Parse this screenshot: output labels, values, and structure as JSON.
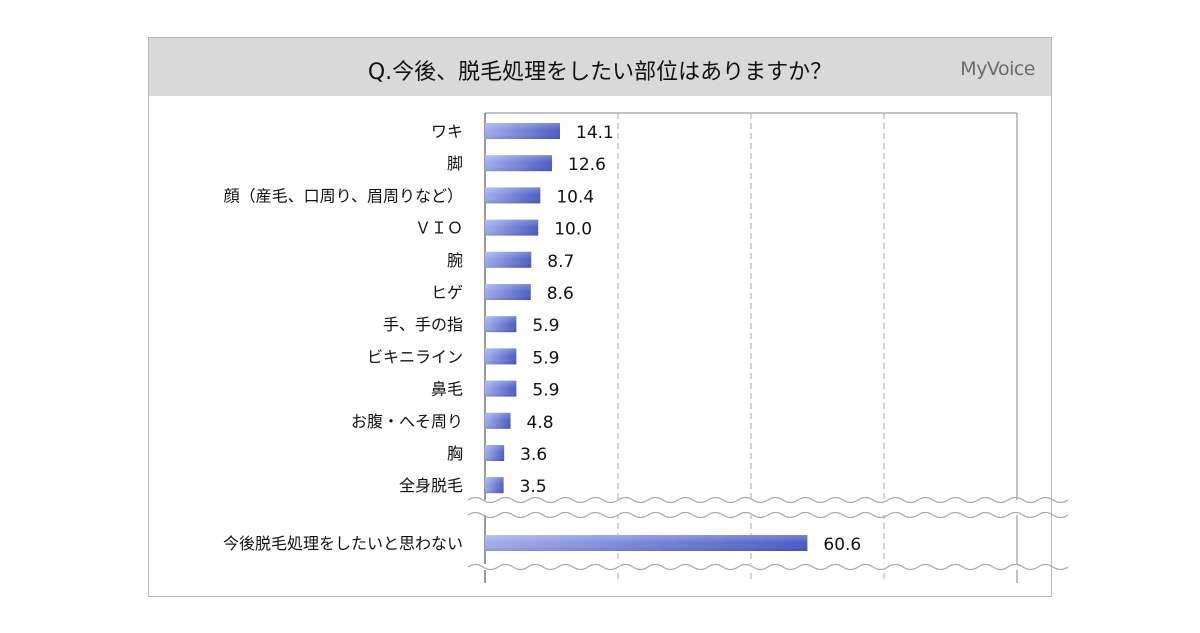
{
  "header": {
    "title": "Q.今後、脱毛処理をしたい部位はありますか？",
    "logo": "MyVoice"
  },
  "colors": {
    "header_bg": "#d9d9d9",
    "bar_dark": "#4b5cc4",
    "bar_light": "#a3acec",
    "grid": "#aaaaaa"
  },
  "chart_data": {
    "type": "bar",
    "orientation": "horizontal",
    "title": "Q.今後、脱毛処理をしたい部位はありますか？",
    "xlim": [
      0,
      100
    ],
    "grid": "vertical dashed at 25, 50, 75",
    "axis_break": "between 全身脱毛 and 今後脱毛処理をしたいと思わない",
    "categories": [
      "ワキ",
      "脚",
      "顔（産毛、口周り、眉周りなど）",
      "ＶＩＯ",
      "腕",
      "ヒゲ",
      "手、手の指",
      "ビキニライン",
      "鼻毛",
      "お腹・へそ周り",
      "胸",
      "全身脱毛",
      "今後脱毛処理をしたいと思わない"
    ],
    "values": [
      14.1,
      12.6,
      10.4,
      10.0,
      8.7,
      8.6,
      5.9,
      5.9,
      5.9,
      4.8,
      3.6,
      3.5,
      60.6
    ],
    "value_labels": [
      "14.1",
      "12.6",
      "10.4",
      "10.0",
      "8.7",
      "8.6",
      "5.9",
      "5.9",
      "5.9",
      "4.8",
      "3.6",
      "3.5",
      "60.6"
    ]
  }
}
